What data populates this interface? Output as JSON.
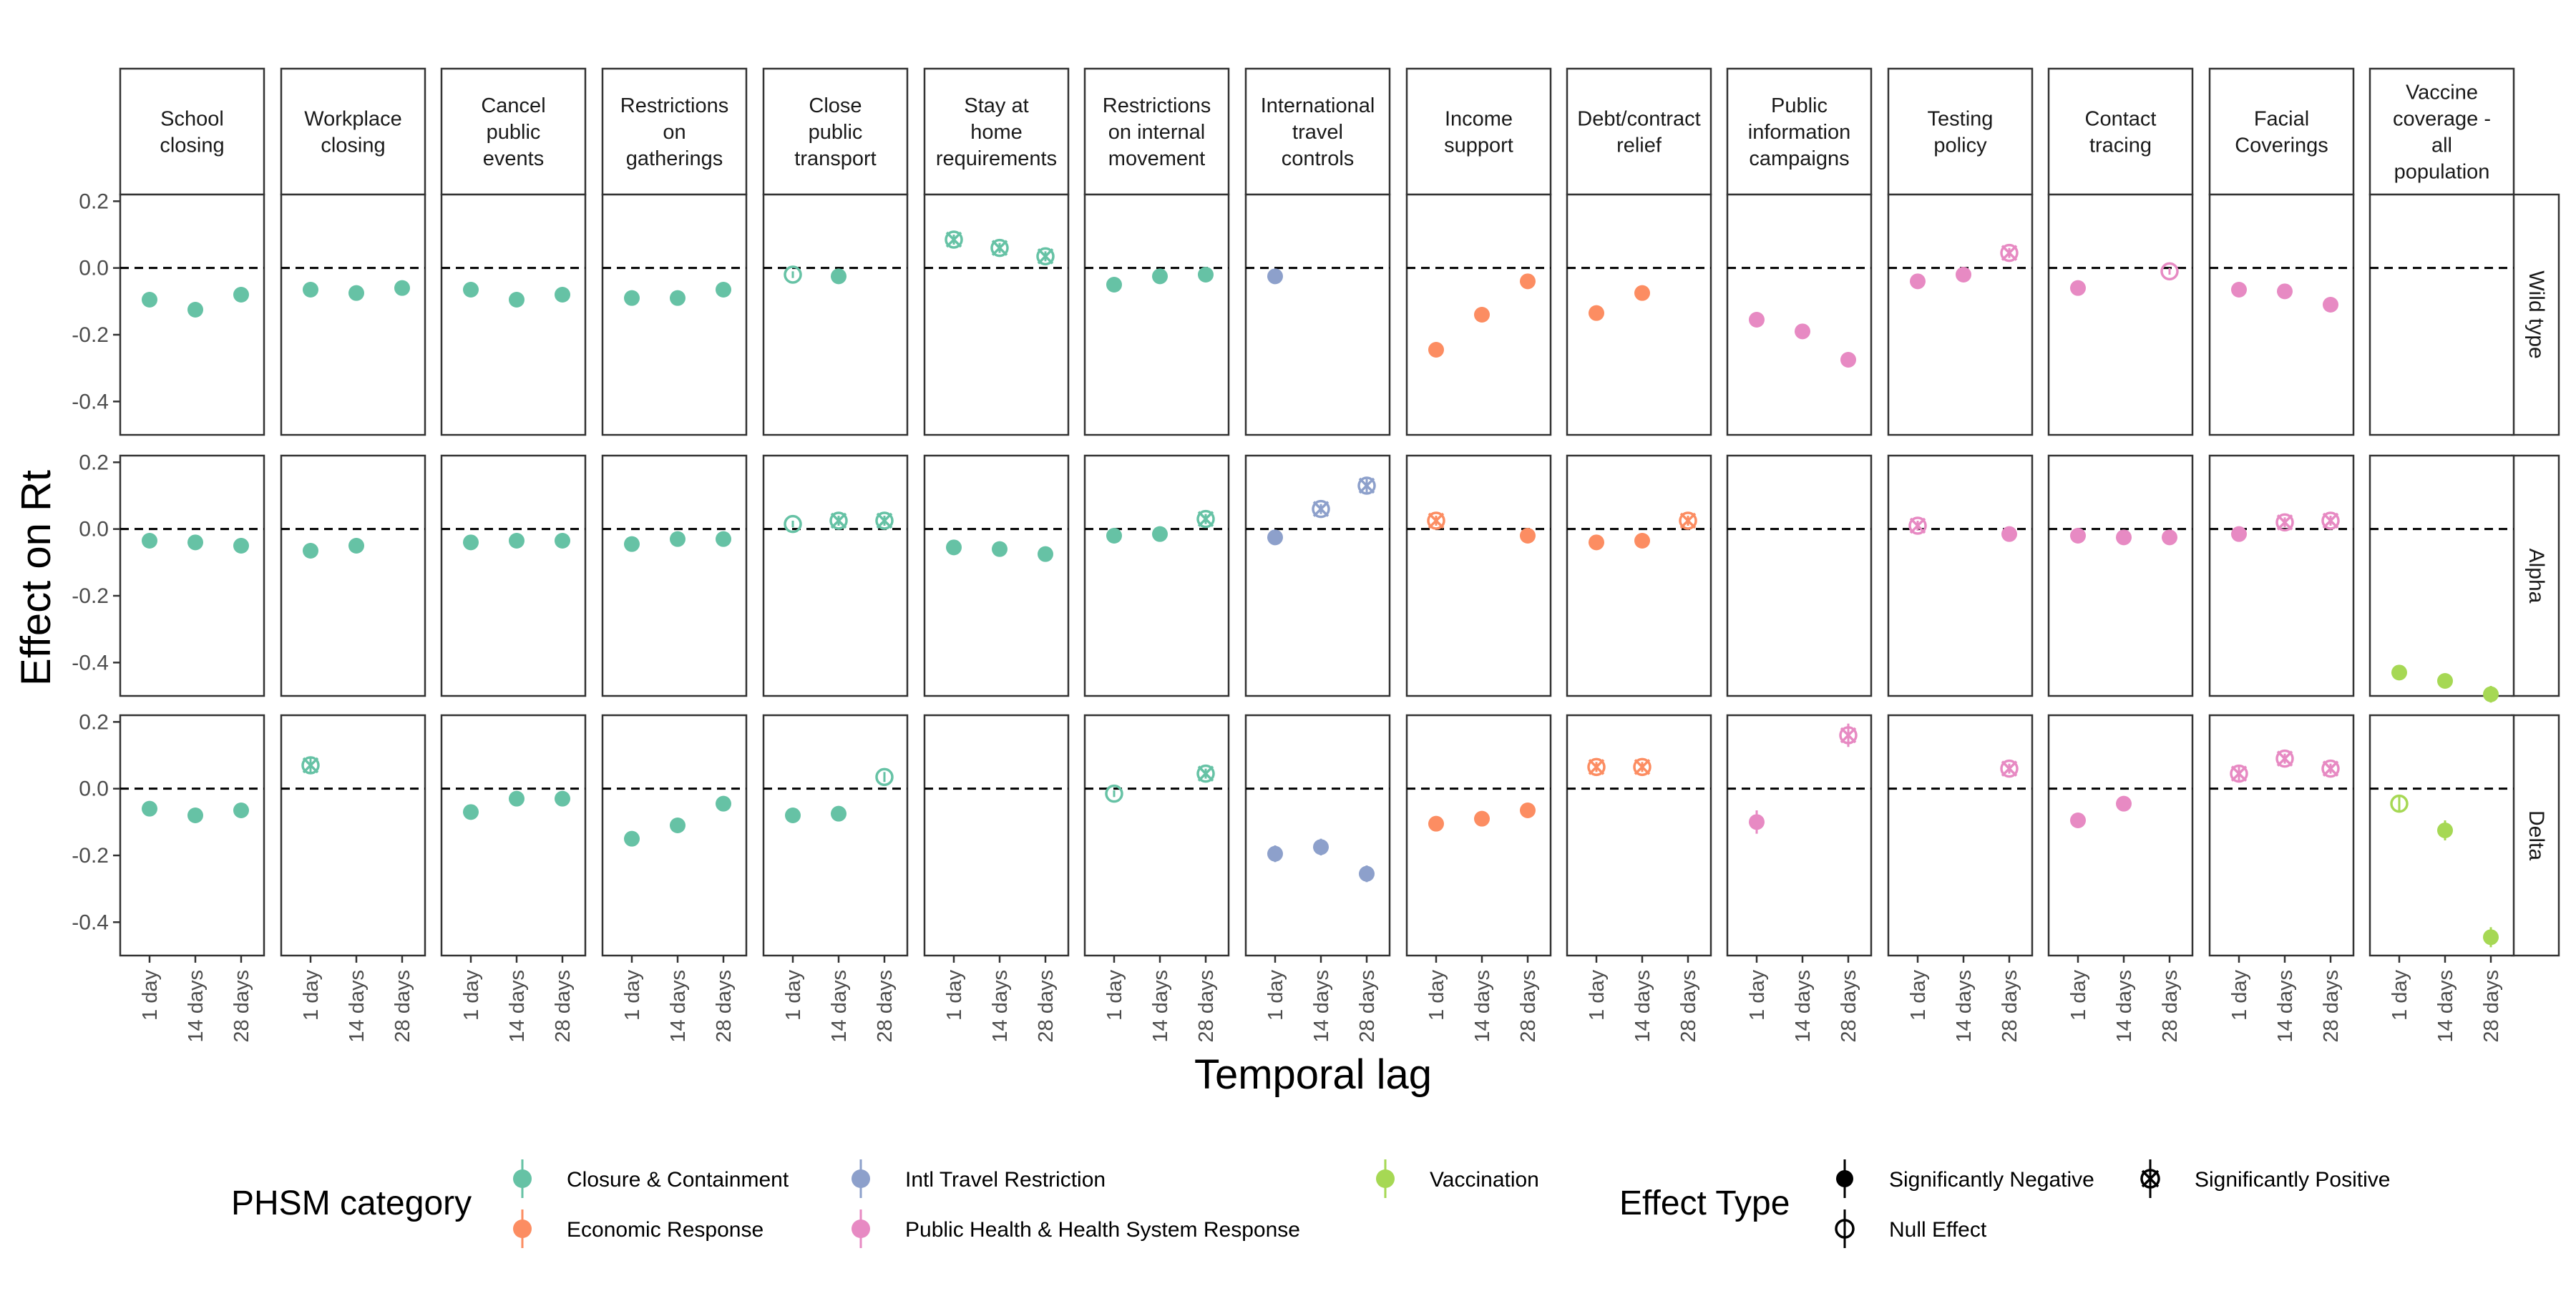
{
  "chart_data": {
    "type": "scatter",
    "xlabel": "Temporal lag",
    "ylabel": "Effect on Rt",
    "x_categories": [
      "1 day",
      "14 days",
      "28 days"
    ],
    "ylim": [
      -0.5,
      0.22
    ],
    "yticks": [
      0.2,
      0.0,
      -0.2,
      -0.4
    ],
    "ytick_labels": [
      "0.2",
      "0.0",
      "-0.2",
      "-0.4"
    ],
    "reference_line": 0,
    "grid": false,
    "variants": [
      "Wild type",
      "Alpha",
      "Delta"
    ],
    "category_colors": {
      "Closure & Containment": "#66C2A5",
      "Economic Response": "#FC8D62",
      "Intl Travel Restriction": "#8DA0CB",
      "Public Health & Health System Response": "#E78AC3",
      "Vaccination": "#A6D854"
    },
    "panels": [
      {
        "label": "School\nclosing",
        "category": "Closure & Containment",
        "data": {
          "Wild type": [
            [
              -0.095,
              "neg",
              0.01
            ],
            [
              -0.125,
              "neg",
              0.01
            ],
            [
              -0.08,
              "neg",
              0.01
            ]
          ],
          "Alpha": [
            [
              -0.035,
              "neg",
              0.01
            ],
            [
              -0.04,
              "neg",
              0.01
            ],
            [
              -0.05,
              "neg",
              0.01
            ]
          ],
          "Delta": [
            [
              -0.06,
              "neg",
              0.015
            ],
            [
              -0.08,
              "neg",
              0.02
            ],
            [
              -0.065,
              "neg",
              0.02
            ]
          ]
        }
      },
      {
        "label": "Workplace\nclosing",
        "category": "Closure & Containment",
        "data": {
          "Wild type": [
            [
              -0.065,
              "neg",
              0.01
            ],
            [
              -0.075,
              "neg",
              0.01
            ],
            [
              -0.06,
              "neg",
              0.01
            ]
          ],
          "Alpha": [
            [
              -0.065,
              "neg",
              0.01
            ],
            [
              -0.05,
              "neg",
              0.01
            ],
            null
          ],
          "Delta": [
            [
              0.07,
              "pos",
              0.025
            ],
            null,
            null
          ]
        }
      },
      {
        "label": "Cancel\npublic\nevents",
        "category": "Closure & Containment",
        "data": {
          "Wild type": [
            [
              -0.065,
              "neg",
              0.01
            ],
            [
              -0.095,
              "neg",
              0.01
            ],
            [
              -0.08,
              "neg",
              0.01
            ]
          ],
          "Alpha": [
            [
              -0.04,
              "neg",
              0.01
            ],
            [
              -0.035,
              "neg",
              0.01
            ],
            [
              -0.035,
              "neg",
              0.01
            ]
          ],
          "Delta": [
            [
              -0.07,
              "neg",
              0.01
            ],
            [
              -0.03,
              "neg",
              0.01
            ],
            [
              -0.03,
              "neg",
              0.01
            ]
          ]
        }
      },
      {
        "label": "Restrictions\non\ngatherings",
        "category": "Closure & Containment",
        "data": {
          "Wild type": [
            [
              -0.09,
              "neg",
              0.01
            ],
            [
              -0.09,
              "neg",
              0.01
            ],
            [
              -0.065,
              "neg",
              0.01
            ]
          ],
          "Alpha": [
            [
              -0.045,
              "neg",
              0.01
            ],
            [
              -0.03,
              "neg",
              0.01
            ],
            [
              -0.03,
              "neg",
              0.01
            ]
          ],
          "Delta": [
            [
              -0.15,
              "neg",
              0.01
            ],
            [
              -0.11,
              "neg",
              0.01
            ],
            [
              -0.045,
              "neg",
              0.01
            ]
          ]
        }
      },
      {
        "label": "Close\npublic\ntransport",
        "category": "Closure & Containment",
        "data": {
          "Wild type": [
            [
              -0.02,
              "null",
              0.01
            ],
            [
              -0.025,
              "neg",
              0.01
            ],
            null
          ],
          "Alpha": [
            [
              0.015,
              "null",
              0.01
            ],
            [
              0.025,
              "pos",
              0.015
            ],
            [
              0.025,
              "pos",
              0.015
            ]
          ],
          "Delta": [
            [
              -0.08,
              "neg",
              0.015
            ],
            [
              -0.075,
              "neg",
              0.02
            ],
            [
              0.035,
              "null",
              0.015
            ]
          ]
        }
      },
      {
        "label": "Stay at\nhome\nrequirements",
        "category": "Closure & Containment",
        "data": {
          "Wild type": [
            [
              0.085,
              "pos",
              0.015
            ],
            [
              0.06,
              "pos",
              0.015
            ],
            [
              0.035,
              "pos",
              0.015
            ]
          ],
          "Alpha": [
            [
              -0.055,
              "neg",
              0.01
            ],
            [
              -0.06,
              "neg",
              0.01
            ],
            [
              -0.075,
              "neg",
              0.01
            ]
          ],
          "Delta": [
            null,
            null,
            null
          ]
        }
      },
      {
        "label": "Restrictions\non internal\nmovement",
        "category": "Closure & Containment",
        "data": {
          "Wild type": [
            [
              -0.05,
              "neg",
              0.01
            ],
            [
              -0.025,
              "neg",
              0.01
            ],
            [
              -0.02,
              "neg",
              0.01
            ]
          ],
          "Alpha": [
            [
              -0.02,
              "neg",
              0.01
            ],
            [
              -0.015,
              "neg",
              0.01
            ],
            [
              0.03,
              "pos",
              0.015
            ]
          ],
          "Delta": [
            [
              -0.015,
              "null",
              0.01
            ],
            null,
            [
              0.045,
              "pos",
              0.015
            ]
          ]
        }
      },
      {
        "label": "International\ntravel\ncontrols",
        "category": "Intl Travel Restriction",
        "data": {
          "Wild type": [
            [
              -0.025,
              "neg",
              0.01
            ],
            null,
            null
          ],
          "Alpha": [
            [
              -0.025,
              "neg",
              0.01
            ],
            [
              0.06,
              "pos",
              0.015
            ],
            [
              0.13,
              "pos",
              0.02
            ]
          ],
          "Delta": [
            [
              -0.195,
              "neg",
              0.025
            ],
            [
              -0.175,
              "neg",
              0.025
            ],
            [
              -0.255,
              "neg",
              0.025
            ]
          ]
        }
      },
      {
        "label": "Income\nsupport",
        "category": "Economic Response",
        "data": {
          "Wild type": [
            [
              -0.245,
              "neg",
              0.01
            ],
            [
              -0.14,
              "neg",
              0.01
            ],
            [
              -0.04,
              "neg",
              0.01
            ]
          ],
          "Alpha": [
            [
              0.025,
              "pos",
              0.015
            ],
            null,
            [
              -0.02,
              "neg",
              0.01
            ]
          ],
          "Delta": [
            [
              -0.105,
              "neg",
              0.01
            ],
            [
              -0.09,
              "neg",
              0.01
            ],
            [
              -0.065,
              "neg",
              0.01
            ]
          ]
        }
      },
      {
        "label": "Debt/contract\nrelief",
        "category": "Economic Response",
        "data": {
          "Wild type": [
            [
              -0.135,
              "neg",
              0.01
            ],
            [
              -0.075,
              "neg",
              0.01
            ],
            null
          ],
          "Alpha": [
            [
              -0.04,
              "neg",
              0.01
            ],
            [
              -0.035,
              "neg",
              0.01
            ],
            [
              0.025,
              "pos",
              0.015
            ]
          ],
          "Delta": [
            [
              0.065,
              "pos",
              0.015
            ],
            [
              0.065,
              "pos",
              0.015
            ],
            null
          ]
        }
      },
      {
        "label": "Public\ninformation\ncampaigns",
        "category": "Public Health & Health System Response",
        "data": {
          "Wild type": [
            [
              -0.155,
              "neg",
              0.01
            ],
            [
              -0.19,
              "neg",
              0.01
            ],
            [
              -0.275,
              "neg",
              0.01
            ]
          ],
          "Alpha": [
            null,
            null,
            null
          ],
          "Delta": [
            [
              -0.1,
              "neg",
              0.035
            ],
            null,
            [
              0.16,
              "pos",
              0.035
            ]
          ]
        }
      },
      {
        "label": "Testing\npolicy",
        "category": "Public Health & Health System Response",
        "data": {
          "Wild type": [
            [
              -0.04,
              "neg",
              0.01
            ],
            [
              -0.02,
              "neg",
              0.01
            ],
            [
              0.045,
              "pos",
              0.015
            ]
          ],
          "Alpha": [
            [
              0.01,
              "pos",
              0.015
            ],
            null,
            [
              -0.015,
              "neg",
              0.01
            ]
          ],
          "Delta": [
            null,
            null,
            [
              0.06,
              "pos",
              0.015
            ]
          ]
        }
      },
      {
        "label": "Contact\ntracing",
        "category": "Public Health & Health System Response",
        "data": {
          "Wild type": [
            [
              -0.06,
              "neg",
              0.01
            ],
            null,
            [
              -0.01,
              "null",
              0.01
            ]
          ],
          "Alpha": [
            [
              -0.02,
              "neg",
              0.01
            ],
            [
              -0.025,
              "neg",
              0.01
            ],
            [
              -0.025,
              "neg",
              0.01
            ]
          ],
          "Delta": [
            [
              -0.095,
              "neg",
              0.01
            ],
            [
              -0.045,
              "neg",
              0.01
            ],
            null
          ]
        }
      },
      {
        "label": "Facial\nCoverings",
        "category": "Public Health & Health System Response",
        "data": {
          "Wild type": [
            [
              -0.065,
              "neg",
              0.01
            ],
            [
              -0.07,
              "neg",
              0.01
            ],
            [
              -0.11,
              "neg",
              0.015
            ]
          ],
          "Alpha": [
            [
              -0.015,
              "neg",
              0.01
            ],
            [
              0.02,
              "pos",
              0.015
            ],
            [
              0.025,
              "pos",
              0.015
            ]
          ],
          "Delta": [
            [
              0.045,
              "pos",
              0.02
            ],
            [
              0.09,
              "pos",
              0.015
            ],
            [
              0.06,
              "pos",
              0.015
            ]
          ]
        }
      },
      {
        "label": "Vaccine\ncoverage -\nall\npopulation",
        "category": "Vaccination",
        "data": {
          "Wild type": [
            null,
            null,
            null
          ],
          "Alpha": [
            [
              -0.43,
              "neg",
              0.01
            ],
            [
              -0.455,
              "neg",
              0.015
            ],
            [
              -0.495,
              "neg",
              0.025
            ]
          ],
          "Delta": [
            [
              -0.045,
              "null",
              0.025
            ],
            [
              -0.125,
              "neg",
              0.03
            ],
            [
              -0.445,
              "neg",
              0.03
            ]
          ]
        }
      }
    ],
    "legend": {
      "category_title": "PHSM category",
      "categories": [
        "Closure & Containment",
        "Economic Response",
        "Intl Travel Restriction",
        "Public Health & Health System Response",
        "Vaccination"
      ],
      "effect_title": "Effect Type",
      "effect_types": [
        "Significantly Negative",
        "Null Effect",
        "Significantly Positive"
      ],
      "placement": "bottom"
    }
  }
}
